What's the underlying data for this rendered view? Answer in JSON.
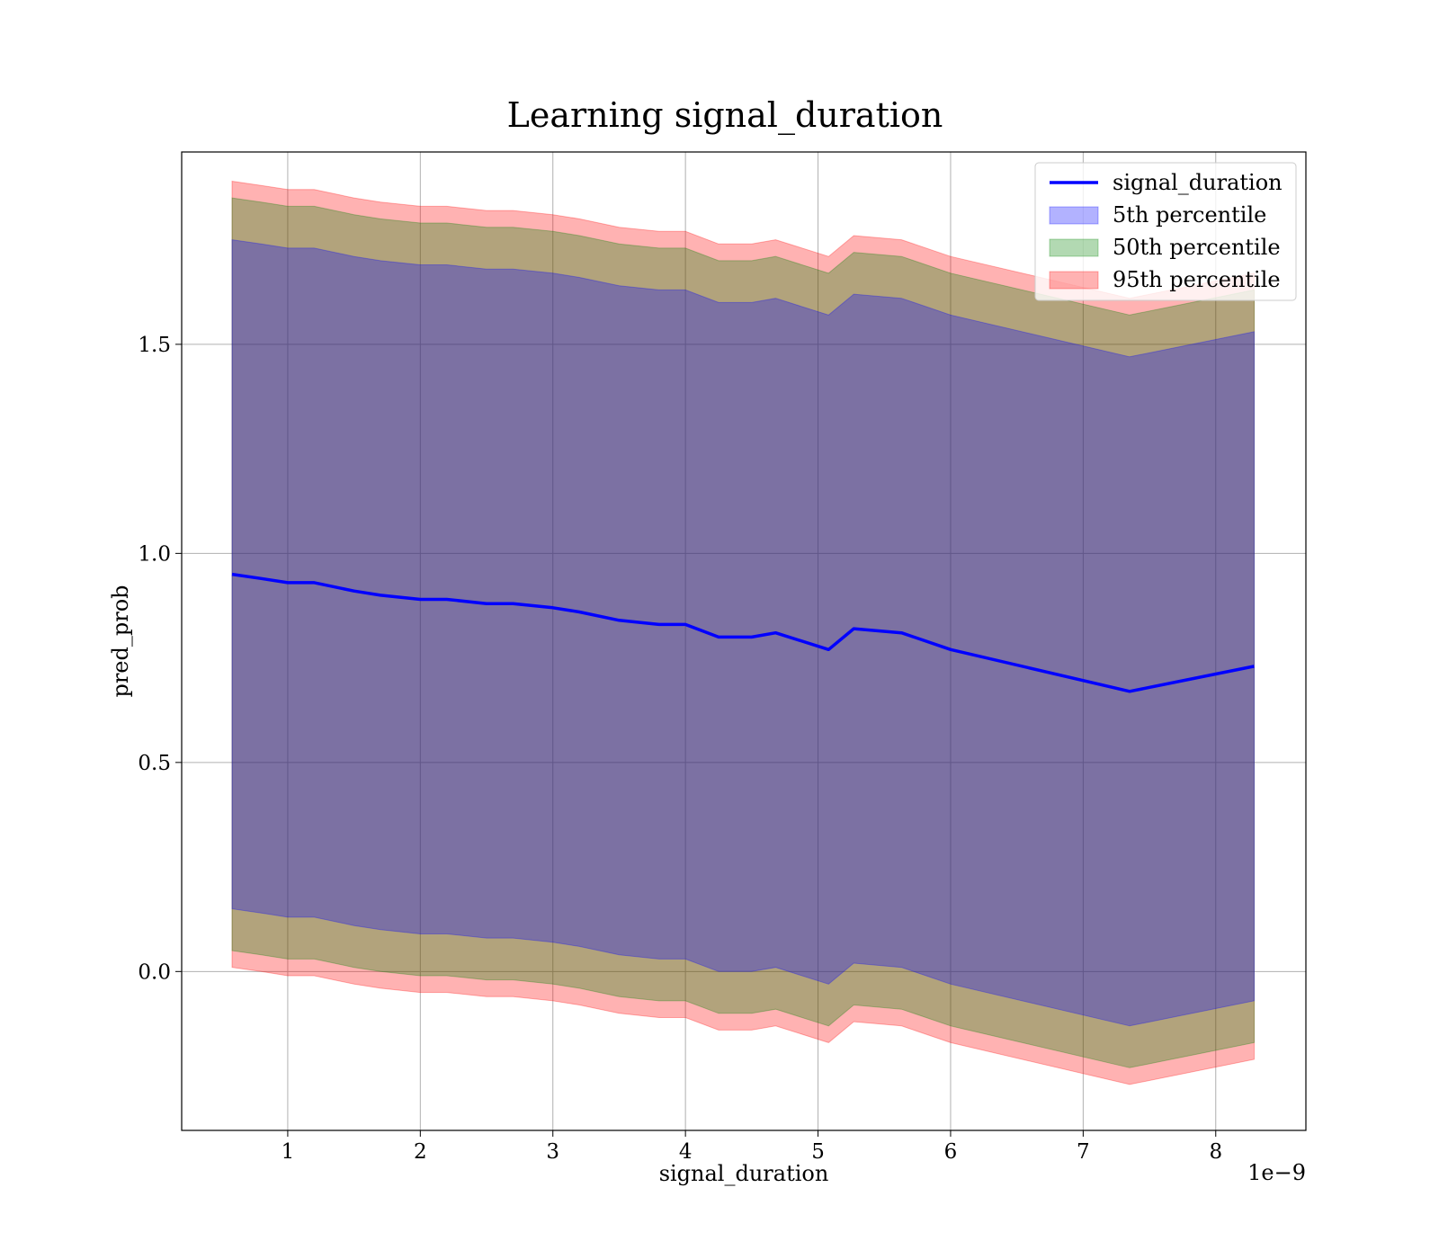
{
  "chart_data": {
    "type": "area",
    "title": "Learning signal_duration",
    "xlabel": "signal_duration",
    "ylabel": "pred_prob",
    "x_offset_text": "1e−9",
    "xlim": [
      0.2,
      8.68
    ],
    "ylim": [
      -0.38,
      1.96
    ],
    "grid": true,
    "legend_position": "top-right",
    "x_ticks": [
      1,
      2,
      3,
      4,
      5,
      6,
      7,
      8
    ],
    "x_tick_labels": [
      "1",
      "2",
      "3",
      "4",
      "5",
      "6",
      "7",
      "8"
    ],
    "y_ticks": [
      0.0,
      0.5,
      1.0,
      1.5
    ],
    "y_tick_labels": [
      "0.0",
      "0.5",
      "1.0",
      "1.5"
    ],
    "x": [
      0.58,
      0.8,
      1.0,
      1.2,
      1.5,
      1.7,
      2.0,
      2.2,
      2.5,
      2.7,
      3.0,
      3.2,
      3.5,
      3.8,
      4.0,
      4.25,
      4.5,
      4.68,
      5.08,
      5.27,
      5.63,
      6.0,
      7.35,
      8.29
    ],
    "series": [
      {
        "name": "signal_duration",
        "kind": "line",
        "color": "#0000ff",
        "values": [
          0.95,
          0.94,
          0.93,
          0.93,
          0.91,
          0.9,
          0.89,
          0.89,
          0.88,
          0.88,
          0.87,
          0.86,
          0.84,
          0.83,
          0.83,
          0.8,
          0.8,
          0.81,
          0.77,
          0.82,
          0.81,
          0.77,
          0.67,
          0.73
        ]
      },
      {
        "name": "5th percentile",
        "kind": "band",
        "color": "#0000ff",
        "lower": [
          0.15,
          0.14,
          0.13,
          0.13,
          0.11,
          0.1,
          0.09,
          0.09,
          0.08,
          0.08,
          0.07,
          0.06,
          0.04,
          0.03,
          0.03,
          0.0,
          0.0,
          0.01,
          -0.03,
          0.02,
          0.01,
          -0.03,
          -0.13,
          -0.07
        ],
        "upper": [
          1.75,
          1.74,
          1.73,
          1.73,
          1.71,
          1.7,
          1.69,
          1.69,
          1.68,
          1.68,
          1.67,
          1.66,
          1.64,
          1.63,
          1.63,
          1.6,
          1.6,
          1.61,
          1.57,
          1.62,
          1.61,
          1.57,
          1.47,
          1.53
        ]
      },
      {
        "name": "50th percentile",
        "kind": "band",
        "color": "#008000",
        "lower": [
          0.05,
          0.04,
          0.03,
          0.03,
          0.01,
          0.0,
          -0.01,
          -0.01,
          -0.02,
          -0.02,
          -0.03,
          -0.04,
          -0.06,
          -0.07,
          -0.07,
          -0.1,
          -0.1,
          -0.09,
          -0.13,
          -0.08,
          -0.09,
          -0.13,
          -0.23,
          -0.17
        ],
        "upper": [
          1.85,
          1.84,
          1.83,
          1.83,
          1.81,
          1.8,
          1.79,
          1.79,
          1.78,
          1.78,
          1.77,
          1.76,
          1.74,
          1.73,
          1.73,
          1.7,
          1.7,
          1.71,
          1.67,
          1.72,
          1.71,
          1.67,
          1.57,
          1.63
        ]
      },
      {
        "name": "95th percentile",
        "kind": "band",
        "color": "#ff0000",
        "lower": [
          0.01,
          0.0,
          -0.01,
          -0.01,
          -0.03,
          -0.04,
          -0.05,
          -0.05,
          -0.06,
          -0.06,
          -0.07,
          -0.08,
          -0.1,
          -0.11,
          -0.11,
          -0.14,
          -0.14,
          -0.13,
          -0.17,
          -0.12,
          -0.13,
          -0.17,
          -0.27,
          -0.21
        ],
        "upper": [
          1.89,
          1.88,
          1.87,
          1.87,
          1.85,
          1.84,
          1.83,
          1.83,
          1.82,
          1.82,
          1.81,
          1.8,
          1.78,
          1.77,
          1.77,
          1.74,
          1.74,
          1.75,
          1.71,
          1.76,
          1.75,
          1.71,
          1.61,
          1.67
        ]
      }
    ]
  }
}
